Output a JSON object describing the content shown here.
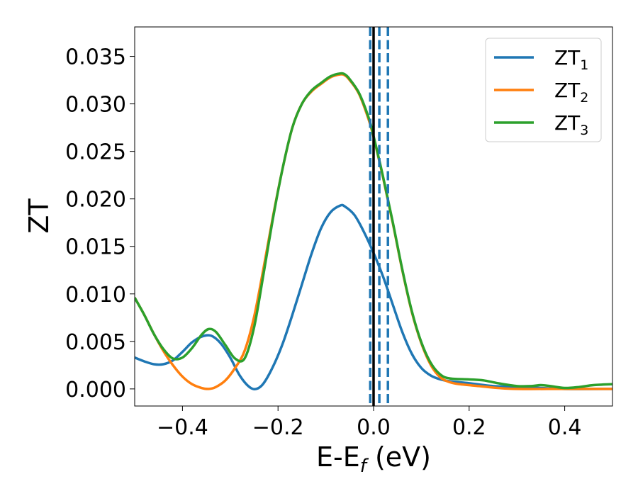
{
  "chart_data": {
    "type": "line",
    "xlabel": {
      "base": "E-E",
      "sub": "f",
      "unit": " (eV)"
    },
    "ylabel": "ZT",
    "xlim": [
      -0.5,
      0.5
    ],
    "ylim": [
      -0.0018,
      0.0381
    ],
    "x_ticks": [
      -0.4,
      -0.2,
      0.0,
      0.2,
      0.4
    ],
    "x_tick_labels": [
      "−0.4",
      "−0.2",
      "0.0",
      "0.2",
      "0.4"
    ],
    "y_ticks": [
      0.0,
      0.005,
      0.01,
      0.015,
      0.02,
      0.025,
      0.03,
      0.035
    ],
    "y_tick_labels": [
      "0.000",
      "0.005",
      "0.010",
      "0.015",
      "0.020",
      "0.025",
      "0.030",
      "0.035"
    ],
    "grid": false,
    "legend_position": "top-right",
    "vertical_lines": [
      {
        "x": -0.007,
        "style": "dashed",
        "color": "#1f77b4"
      },
      {
        "x": 0.012,
        "style": "dashed",
        "color": "#1f77b4"
      },
      {
        "x": 0.03,
        "style": "dashed",
        "color": "#1f77b4"
      },
      {
        "x": 0.0,
        "style": "solid",
        "color": "#000000"
      }
    ],
    "series": [
      {
        "name": {
          "base": "ZT",
          "sub": "1"
        },
        "color": "#1f77b4",
        "points": [
          [
            -0.5,
            0.0033
          ],
          [
            -0.48,
            0.0029
          ],
          [
            -0.46,
            0.0026
          ],
          [
            -0.44,
            0.0026
          ],
          [
            -0.42,
            0.003
          ],
          [
            -0.4,
            0.0039
          ],
          [
            -0.38,
            0.0049
          ],
          [
            -0.36,
            0.0055
          ],
          [
            -0.34,
            0.0056
          ],
          [
            -0.32,
            0.0048
          ],
          [
            -0.3,
            0.0033
          ],
          [
            -0.28,
            0.0014
          ],
          [
            -0.26,
            0.0002
          ],
          [
            -0.245,
            0.0
          ],
          [
            -0.23,
            0.0006
          ],
          [
            -0.21,
            0.0024
          ],
          [
            -0.19,
            0.0048
          ],
          [
            -0.17,
            0.0078
          ],
          [
            -0.15,
            0.011
          ],
          [
            -0.13,
            0.0142
          ],
          [
            -0.11,
            0.0169
          ],
          [
            -0.09,
            0.0186
          ],
          [
            -0.07,
            0.0193
          ],
          [
            -0.06,
            0.0192
          ],
          [
            -0.04,
            0.0183
          ],
          [
            -0.02,
            0.0165
          ],
          [
            0.0,
            0.0143
          ],
          [
            0.02,
            0.0118
          ],
          [
            0.04,
            0.0089
          ],
          [
            0.06,
            0.006
          ],
          [
            0.08,
            0.0037
          ],
          [
            0.1,
            0.0022
          ],
          [
            0.12,
            0.0014
          ],
          [
            0.14,
            0.001
          ],
          [
            0.16,
            0.0008
          ],
          [
            0.2,
            0.0006
          ],
          [
            0.25,
            0.0003
          ],
          [
            0.3,
            0.0002
          ],
          [
            0.35,
            0.0001
          ],
          [
            0.4,
            0.0
          ],
          [
            0.5,
            0.0
          ]
        ]
      },
      {
        "name": {
          "base": "ZT",
          "sub": "2"
        },
        "color": "#ff7f0e",
        "points": [
          [
            -0.5,
            0.0096
          ],
          [
            -0.48,
            0.0078
          ],
          [
            -0.46,
            0.0058
          ],
          [
            -0.44,
            0.004
          ],
          [
            -0.42,
            0.0025
          ],
          [
            -0.4,
            0.0013
          ],
          [
            -0.38,
            0.0005
          ],
          [
            -0.36,
            0.0001
          ],
          [
            -0.345,
            0.0
          ],
          [
            -0.33,
            0.0002
          ],
          [
            -0.31,
            0.0009
          ],
          [
            -0.29,
            0.0022
          ],
          [
            -0.27,
            0.004
          ],
          [
            -0.25,
            0.0076
          ],
          [
            -0.23,
            0.0128
          ],
          [
            -0.21,
            0.0183
          ],
          [
            -0.19,
            0.0233
          ],
          [
            -0.17,
            0.0275
          ],
          [
            -0.15,
            0.03
          ],
          [
            -0.13,
            0.0313
          ],
          [
            -0.11,
            0.0321
          ],
          [
            -0.09,
            0.0328
          ],
          [
            -0.07,
            0.0331
          ],
          [
            -0.06,
            0.033
          ],
          [
            -0.05,
            0.0325
          ],
          [
            -0.03,
            0.031
          ],
          [
            -0.01,
            0.0283
          ],
          [
            0.0,
            0.0265
          ],
          [
            0.02,
            0.0222
          ],
          [
            0.04,
            0.0175
          ],
          [
            0.06,
            0.0125
          ],
          [
            0.08,
            0.0081
          ],
          [
            0.1,
            0.0048
          ],
          [
            0.12,
            0.0025
          ],
          [
            0.14,
            0.0012
          ],
          [
            0.16,
            0.0007
          ],
          [
            0.18,
            0.0005
          ],
          [
            0.22,
            0.0003
          ],
          [
            0.26,
            0.0001
          ],
          [
            0.3,
            0.0
          ],
          [
            0.4,
            0.0
          ],
          [
            0.5,
            0.0
          ]
        ]
      },
      {
        "name": {
          "base": "ZT",
          "sub": "3"
        },
        "color": "#2ca02c",
        "points": [
          [
            -0.5,
            0.0096
          ],
          [
            -0.48,
            0.0078
          ],
          [
            -0.46,
            0.0058
          ],
          [
            -0.44,
            0.0042
          ],
          [
            -0.42,
            0.0032
          ],
          [
            -0.4,
            0.0033
          ],
          [
            -0.38,
            0.0043
          ],
          [
            -0.36,
            0.0057
          ],
          [
            -0.345,
            0.0063
          ],
          [
            -0.33,
            0.006
          ],
          [
            -0.31,
            0.0046
          ],
          [
            -0.29,
            0.0032
          ],
          [
            -0.27,
            0.0032
          ],
          [
            -0.25,
            0.0065
          ],
          [
            -0.23,
            0.0122
          ],
          [
            -0.21,
            0.0181
          ],
          [
            -0.19,
            0.0233
          ],
          [
            -0.17,
            0.0275
          ],
          [
            -0.15,
            0.03
          ],
          [
            -0.13,
            0.0314
          ],
          [
            -0.11,
            0.0322
          ],
          [
            -0.09,
            0.0329
          ],
          [
            -0.07,
            0.0332
          ],
          [
            -0.06,
            0.0331
          ],
          [
            -0.05,
            0.0326
          ],
          [
            -0.03,
            0.0311
          ],
          [
            -0.01,
            0.0285
          ],
          [
            0.0,
            0.0266
          ],
          [
            0.02,
            0.0223
          ],
          [
            0.04,
            0.0176
          ],
          [
            0.06,
            0.0126
          ],
          [
            0.08,
            0.0082
          ],
          [
            0.1,
            0.0049
          ],
          [
            0.12,
            0.0027
          ],
          [
            0.14,
            0.0015
          ],
          [
            0.16,
            0.0011
          ],
          [
            0.2,
            0.001
          ],
          [
            0.23,
            0.0009
          ],
          [
            0.26,
            0.0006
          ],
          [
            0.3,
            0.0003
          ],
          [
            0.33,
            0.0003
          ],
          [
            0.35,
            0.0004
          ],
          [
            0.37,
            0.0003
          ],
          [
            0.4,
            0.0001
          ],
          [
            0.43,
            0.0002
          ],
          [
            0.46,
            0.0004
          ],
          [
            0.5,
            0.0005
          ]
        ]
      }
    ]
  }
}
